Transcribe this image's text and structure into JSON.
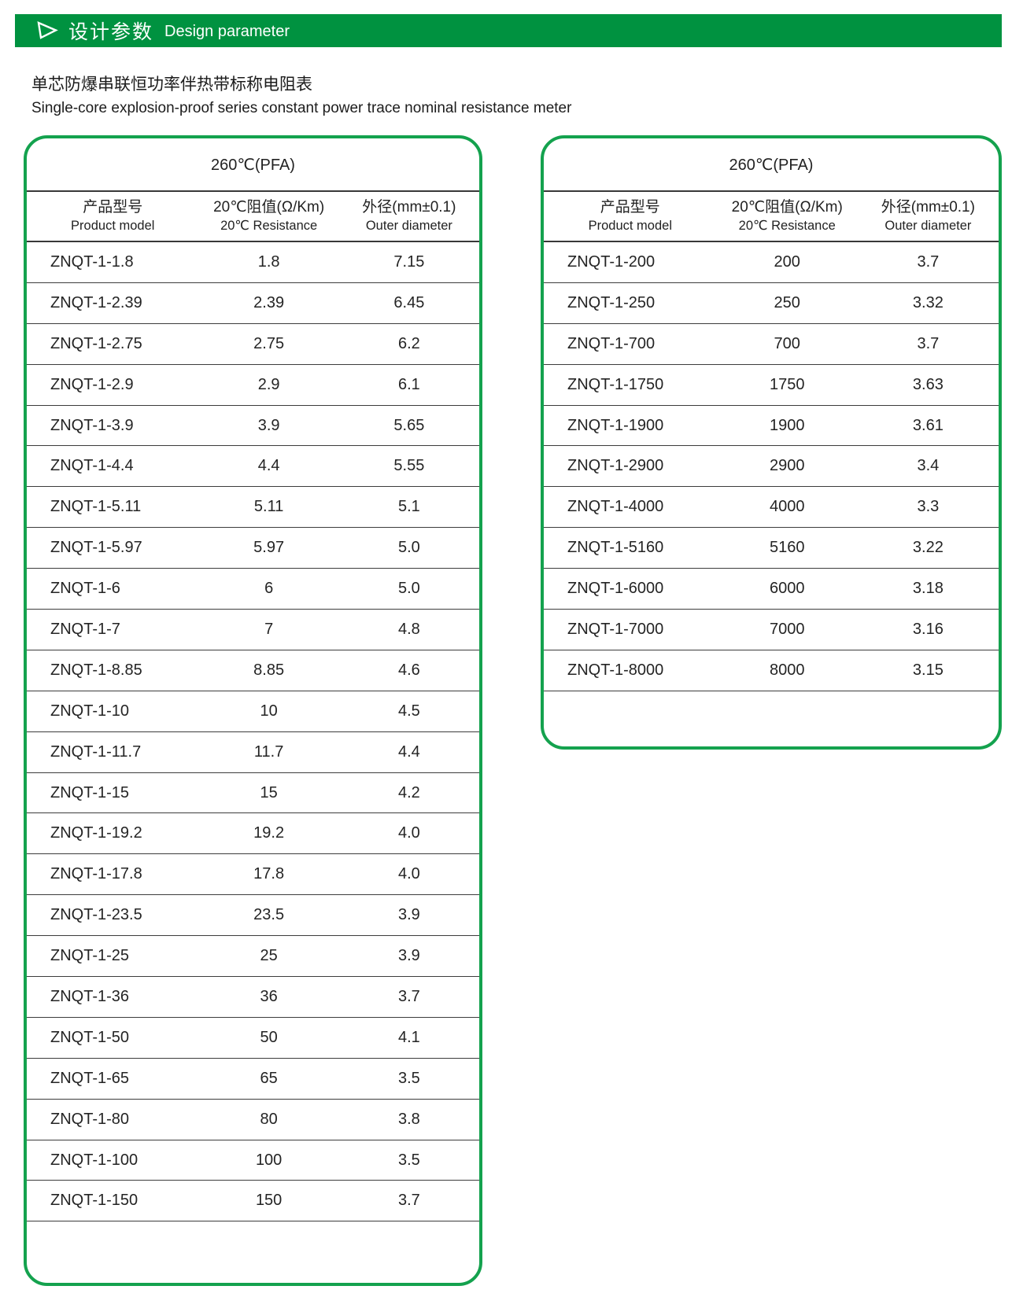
{
  "colors": {
    "header_bar_green": "#009240",
    "table_border_green": "#14a24e",
    "rule_line": "#3c3c3c"
  },
  "header_bar": {
    "arrow_icon": "right-arrowhead-icon",
    "title_zh": "设计参数",
    "title_en": "Design parameter"
  },
  "page_title": {
    "zh": "单芯防爆串联恒功率伴热带标称电阻表",
    "en": "Single-core explosion-proof series constant power trace nominal resistance meter"
  },
  "tables": [
    {
      "temp_header": "260℃(PFA)",
      "columns": [
        {
          "zh": "产品型号",
          "en": "Product model"
        },
        {
          "zh": "20℃阻值(Ω/Km)",
          "en": "20℃ Resistance"
        },
        {
          "zh": "外径(mm±0.1)",
          "en": "Outer diameter"
        }
      ],
      "rows": [
        {
          "model": "ZNQT-1-1.8",
          "resistance": "1.8",
          "diameter": "7.15"
        },
        {
          "model": "ZNQT-1-2.39",
          "resistance": "2.39",
          "diameter": "6.45"
        },
        {
          "model": "ZNQT-1-2.75",
          "resistance": "2.75",
          "diameter": "6.2"
        },
        {
          "model": "ZNQT-1-2.9",
          "resistance": "2.9",
          "diameter": "6.1"
        },
        {
          "model": "ZNQT-1-3.9",
          "resistance": "3.9",
          "diameter": "5.65"
        },
        {
          "model": "ZNQT-1-4.4",
          "resistance": "4.4",
          "diameter": "5.55"
        },
        {
          "model": "ZNQT-1-5.11",
          "resistance": "5.11",
          "diameter": "5.1"
        },
        {
          "model": "ZNQT-1-5.97",
          "resistance": "5.97",
          "diameter": "5.0"
        },
        {
          "model": "ZNQT-1-6",
          "resistance": "6",
          "diameter": "5.0"
        },
        {
          "model": "ZNQT-1-7",
          "resistance": "7",
          "diameter": "4.8"
        },
        {
          "model": "ZNQT-1-8.85",
          "resistance": "8.85",
          "diameter": "4.6"
        },
        {
          "model": "ZNQT-1-10",
          "resistance": "10",
          "diameter": "4.5"
        },
        {
          "model": "ZNQT-1-11.7",
          "resistance": "11.7",
          "diameter": "4.4"
        },
        {
          "model": "ZNQT-1-15",
          "resistance": "15",
          "diameter": "4.2"
        },
        {
          "model": "ZNQT-1-19.2",
          "resistance": "19.2",
          "diameter": "4.0"
        },
        {
          "model": "ZNQT-1-17.8",
          "resistance": "17.8",
          "diameter": "4.0"
        },
        {
          "model": "ZNQT-1-23.5",
          "resistance": "23.5",
          "diameter": "3.9"
        },
        {
          "model": "ZNQT-1-25",
          "resistance": "25",
          "diameter": "3.9"
        },
        {
          "model": "ZNQT-1-36",
          "resistance": "36",
          "diameter": "3.7"
        },
        {
          "model": "ZNQT-1-50",
          "resistance": "50",
          "diameter": "4.1"
        },
        {
          "model": "ZNQT-1-65",
          "resistance": "65",
          "diameter": "3.5"
        },
        {
          "model": "ZNQT-1-80",
          "resistance": "80",
          "diameter": "3.8"
        },
        {
          "model": "ZNQT-1-100",
          "resistance": "100",
          "diameter": "3.5"
        },
        {
          "model": "ZNQT-1-150",
          "resistance": "150",
          "diameter": "3.7"
        }
      ]
    },
    {
      "temp_header": "260℃(PFA)",
      "columns": [
        {
          "zh": "产品型号",
          "en": "Product model"
        },
        {
          "zh": "20℃阻值(Ω/Km)",
          "en": "20℃ Resistance"
        },
        {
          "zh": "外径(mm±0.1)",
          "en": "Outer diameter"
        }
      ],
      "rows": [
        {
          "model": "ZNQT-1-200",
          "resistance": "200",
          "diameter": "3.7"
        },
        {
          "model": "ZNQT-1-250",
          "resistance": "250",
          "diameter": "3.32"
        },
        {
          "model": "ZNQT-1-700",
          "resistance": "700",
          "diameter": "3.7"
        },
        {
          "model": "ZNQT-1-1750",
          "resistance": "1750",
          "diameter": "3.63"
        },
        {
          "model": "ZNQT-1-1900",
          "resistance": "1900",
          "diameter": "3.61"
        },
        {
          "model": "ZNQT-1-2900",
          "resistance": "2900",
          "diameter": "3.4"
        },
        {
          "model": "ZNQT-1-4000",
          "resistance": "4000",
          "diameter": "3.3"
        },
        {
          "model": "ZNQT-1-5160",
          "resistance": "5160",
          "diameter": "3.22"
        },
        {
          "model": "ZNQT-1-6000",
          "resistance": "6000",
          "diameter": "3.18"
        },
        {
          "model": "ZNQT-1-7000",
          "resistance": "7000",
          "diameter": "3.16"
        },
        {
          "model": "ZNQT-1-8000",
          "resistance": "8000",
          "diameter": "3.15"
        }
      ]
    }
  ]
}
